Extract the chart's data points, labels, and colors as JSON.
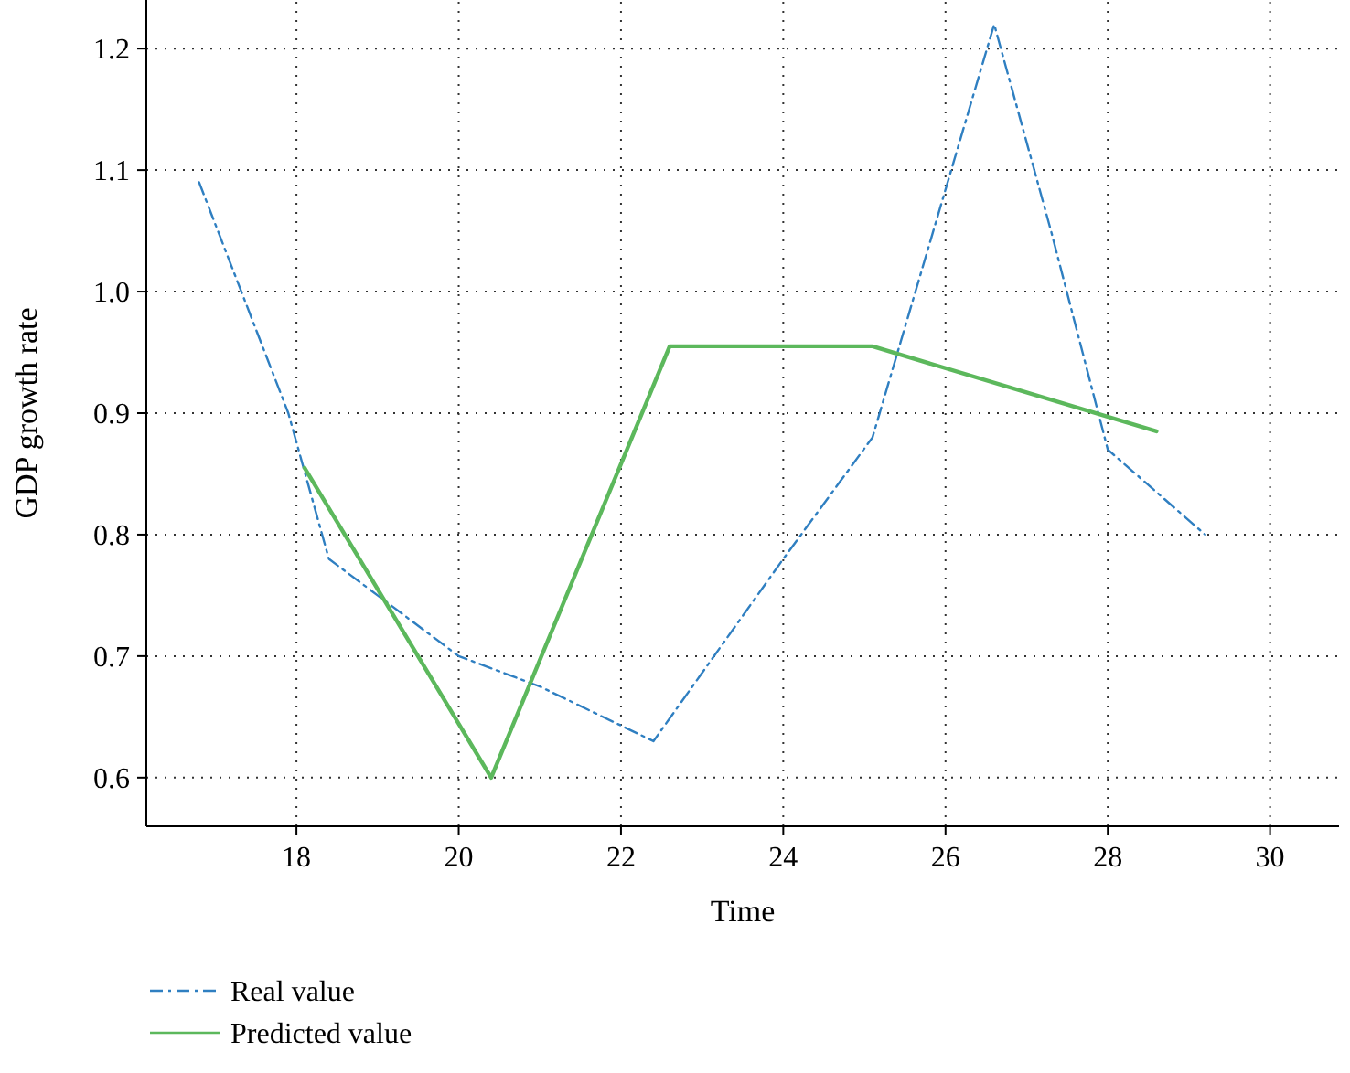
{
  "chart_data": {
    "type": "line",
    "xlabel": "Time",
    "ylabel": "GDP growth rate",
    "xlim": [
      16.15,
      30.85
    ],
    "xticks": [
      18,
      20,
      22,
      24,
      26,
      28,
      30
    ],
    "ylim": [
      0.56,
      1.24
    ],
    "yticks": [
      {
        "value": 0.6,
        "label": "0.6"
      },
      {
        "value": 0.7,
        "label": "0.7"
      },
      {
        "value": 0.8,
        "label": "0.8"
      },
      {
        "value": 0.9,
        "label": "0.9"
      },
      {
        "value": 1.0,
        "label": "1.0"
      },
      {
        "value": 1.1,
        "label": "1.1"
      },
      {
        "value": 1.2,
        "label": "1.2"
      }
    ],
    "grid": true,
    "legend": "bottom left",
    "marker": "none",
    "series": [
      {
        "name": "Real value",
        "color": "#2f7fc1",
        "line_style": "dashdot",
        "x": [
          16.8,
          17.9,
          18.4,
          20.0,
          21.0,
          22.4,
          24.0,
          25.1,
          26.6,
          27.3,
          28.0,
          29.2
        ],
        "values": [
          1.09,
          0.9,
          0.78,
          0.7,
          0.675,
          0.63,
          0.78,
          0.88,
          1.22,
          1.05,
          0.87,
          0.8
        ]
      },
      {
        "name": "Predicted value",
        "color": "#5cb85c",
        "line_style": "solid",
        "x": [
          18.1,
          20.4,
          22.6,
          25.1,
          28.6
        ],
        "values": [
          0.855,
          0.6,
          0.955,
          0.955,
          0.885
        ]
      }
    ]
  }
}
